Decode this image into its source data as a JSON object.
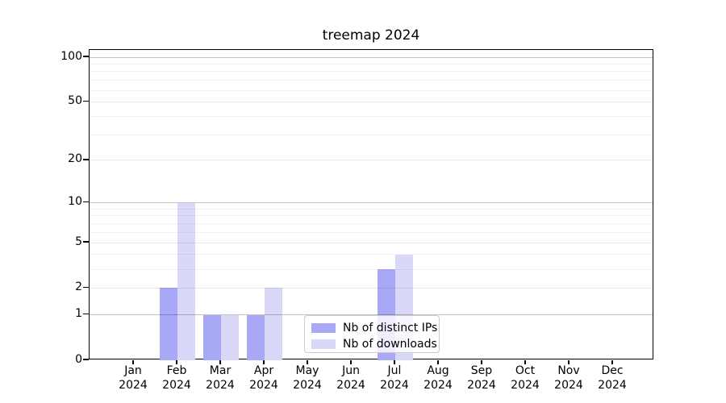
{
  "chart_data": {
    "type": "bar",
    "title": "treemap 2024",
    "categories": [
      "Jan",
      "Feb",
      "Mar",
      "Apr",
      "May",
      "Jun",
      "Jul",
      "Aug",
      "Sep",
      "Oct",
      "Nov",
      "Dec"
    ],
    "xtick_year": "2024",
    "series": [
      {
        "name": "Nb of distinct IPs",
        "color": "#a9a8f6",
        "values": [
          0,
          2,
          1,
          1,
          0,
          0,
          3,
          0,
          0,
          0,
          0,
          0
        ]
      },
      {
        "name": "Nb of downloads",
        "color": "#d9d8f9",
        "values": [
          0,
          10,
          1,
          2,
          0,
          0,
          4,
          0,
          0,
          0,
          0,
          0
        ]
      }
    ],
    "yticks": [
      0,
      1,
      2,
      5,
      10,
      20,
      50,
      100
    ],
    "minor_gridlines": [
      3,
      4,
      6,
      7,
      8,
      9,
      30,
      40,
      60,
      70,
      80,
      90
    ],
    "scale": "log1p",
    "ylim": [
      0,
      112
    ],
    "grid": true,
    "legend_position": "lower center",
    "colors": {
      "major_grid": "rgba(0,0,0,0.24)",
      "mid_grid": "rgba(0,0,0,0.085)",
      "minor_grid": "rgba(0,0,0,0.05)",
      "spine": "#000000",
      "text": "#000000",
      "legend_border": "#cccccc"
    }
  }
}
